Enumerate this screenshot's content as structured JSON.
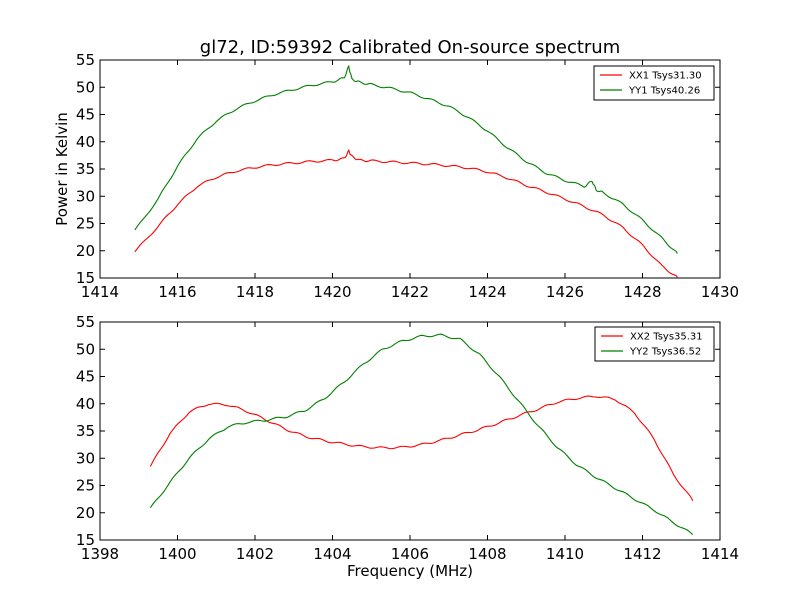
{
  "chart_data": [
    {
      "type": "line",
      "title": "gl72, ID:59392 Calibrated On-source spectrum",
      "xlabel": "",
      "ylabel": "Power in Kelvin",
      "xlim": [
        1414,
        1430
      ],
      "ylim": [
        15,
        55
      ],
      "xticks": [
        "1414",
        "1416",
        "1418",
        "1420",
        "1422",
        "1424",
        "1426",
        "1428",
        "1430"
      ],
      "yticks": [
        "15",
        "20",
        "25",
        "30",
        "35",
        "40",
        "45",
        "50",
        "55"
      ],
      "grid": false,
      "legend_position": "top-right",
      "series": [
        {
          "name": "XX1 Tsys31.30",
          "color": "#ff0000",
          "x": [
            1414.9,
            1415.5,
            1416.0,
            1416.5,
            1417.0,
            1417.5,
            1418.0,
            1418.5,
            1419.0,
            1419.5,
            1420.0,
            1420.3,
            1420.42,
            1420.5,
            1420.7,
            1421.0,
            1421.5,
            1422.0,
            1422.5,
            1423.0,
            1423.5,
            1424.0,
            1424.5,
            1425.0,
            1425.5,
            1426.0,
            1426.5,
            1427.0,
            1427.5,
            1428.0,
            1428.5,
            1428.9
          ],
          "values": [
            19.8,
            24.5,
            28.5,
            31.8,
            33.5,
            34.6,
            35.3,
            35.8,
            36.1,
            36.4,
            36.6,
            36.9,
            38.3,
            37.3,
            36.6,
            36.5,
            36.3,
            36.1,
            35.9,
            35.6,
            35.2,
            34.5,
            33.4,
            32.0,
            30.8,
            29.5,
            28.1,
            26.5,
            24.2,
            21.0,
            17.2,
            15.1
          ]
        },
        {
          "name": "YY1 Tsys40.26",
          "color": "#008000",
          "x": [
            1414.9,
            1415.5,
            1416.0,
            1416.5,
            1417.0,
            1417.5,
            1418.0,
            1418.5,
            1419.0,
            1419.5,
            1420.0,
            1420.3,
            1420.42,
            1420.5,
            1420.7,
            1421.0,
            1421.5,
            1422.0,
            1422.5,
            1423.0,
            1423.5,
            1424.0,
            1424.5,
            1425.0,
            1425.5,
            1426.0,
            1426.5,
            1426.7,
            1426.8,
            1427.0,
            1427.5,
            1428.0,
            1428.5,
            1428.9
          ],
          "values": [
            23.7,
            29.5,
            35.5,
            40.5,
            43.8,
            46.0,
            47.5,
            48.7,
            49.6,
            50.4,
            51.0,
            51.7,
            53.8,
            51.5,
            50.9,
            50.5,
            49.8,
            49.0,
            47.8,
            46.5,
            44.5,
            42.0,
            39.0,
            36.4,
            34.3,
            32.9,
            31.8,
            32.8,
            31.2,
            30.6,
            28.5,
            25.6,
            22.3,
            19.5
          ]
        }
      ]
    },
    {
      "type": "line",
      "title": "",
      "xlabel": "Frequency (MHz)",
      "ylabel": "",
      "xlim": [
        1398,
        1414
      ],
      "ylim": [
        15,
        55
      ],
      "xticks": [
        "1398",
        "1400",
        "1402",
        "1404",
        "1406",
        "1408",
        "1410",
        "1412",
        "1414"
      ],
      "yticks": [
        "15",
        "20",
        "25",
        "30",
        "35",
        "40",
        "45",
        "50",
        "55"
      ],
      "grid": false,
      "legend_position": "top-right",
      "series": [
        {
          "name": "XX2 Tsys35.31",
          "color": "#ff0000",
          "x": [
            1399.3,
            1399.8,
            1400.3,
            1400.8,
            1401.3,
            1401.8,
            1402.3,
            1402.8,
            1403.3,
            1403.8,
            1404.3,
            1404.8,
            1405.3,
            1405.8,
            1406.3,
            1406.8,
            1407.3,
            1407.8,
            1408.3,
            1408.8,
            1409.3,
            1409.8,
            1410.3,
            1410.8,
            1411.3,
            1411.8,
            1412.3,
            1412.8,
            1413.3
          ],
          "values": [
            28.5,
            34.5,
            38.5,
            40.0,
            39.8,
            38.6,
            37.0,
            35.3,
            34.0,
            33.2,
            32.6,
            32.1,
            31.9,
            32.0,
            32.5,
            33.3,
            34.3,
            35.3,
            36.5,
            37.8,
            39.0,
            40.3,
            41.0,
            41.4,
            40.8,
            38.3,
            33.5,
            27.0,
            22.2
          ]
        },
        {
          "name": "YY2 Tsys36.52",
          "color": "#008000",
          "x": [
            1399.3,
            1399.8,
            1400.3,
            1400.8,
            1401.3,
            1401.8,
            1402.3,
            1402.8,
            1403.3,
            1403.8,
            1404.3,
            1404.8,
            1405.3,
            1405.8,
            1406.3,
            1406.8,
            1407.3,
            1407.8,
            1408.3,
            1408.8,
            1409.3,
            1409.8,
            1410.3,
            1410.8,
            1411.3,
            1411.8,
            1412.3,
            1412.8,
            1413.3
          ],
          "values": [
            20.8,
            25.5,
            30.0,
            33.5,
            35.8,
            36.6,
            37.0,
            37.6,
            38.8,
            41.0,
            44.0,
            47.3,
            50.0,
            51.5,
            52.4,
            52.6,
            51.8,
            49.0,
            45.0,
            40.5,
            36.0,
            32.0,
            28.8,
            26.5,
            24.5,
            22.5,
            20.5,
            18.2,
            16.0
          ]
        }
      ]
    }
  ]
}
